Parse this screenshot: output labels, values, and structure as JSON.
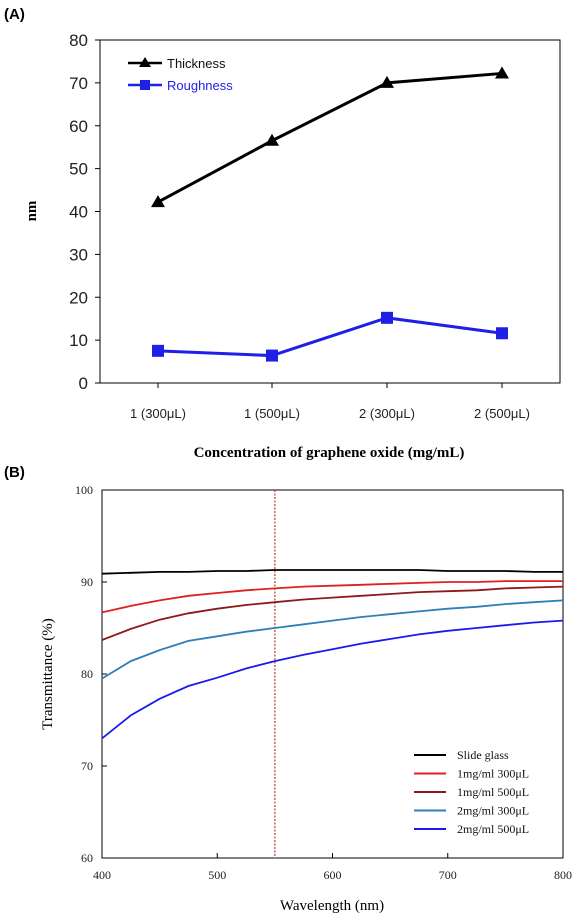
{
  "chart_data": [
    {
      "panel_label": "(A)",
      "type": "line",
      "categories": [
        "1 (300μL)",
        "1 (500μL)",
        "2 (300μL)",
        "2 (500μL)"
      ],
      "series": [
        {
          "name": "Thickness",
          "values": [
            42.2,
            56.5,
            70.0,
            72.2
          ],
          "color": "#000000",
          "marker": "triangle"
        },
        {
          "name": "Roughness",
          "values": [
            7.5,
            6.4,
            15.2,
            11.6
          ],
          "color": "#1f1fe6",
          "marker": "square"
        }
      ],
      "xlabel": "Concentration of graphene oxide (mg/mL)",
      "ylabel": "nm",
      "ylim": [
        0,
        80
      ],
      "yticks": [
        "0",
        "10",
        "20",
        "30",
        "40",
        "50",
        "60",
        "70",
        "80"
      ],
      "grid": false,
      "legend": "top-left"
    },
    {
      "panel_label": "(B)",
      "type": "line",
      "xlabel": "Wavelength (nm)",
      "ylabel": "Transmittance (%)",
      "xlim": [
        400,
        800
      ],
      "ylim": [
        60,
        100
      ],
      "xticks": [
        "400",
        "500",
        "600",
        "700",
        "800"
      ],
      "yticks": [
        "60",
        "70",
        "80",
        "90",
        "100"
      ],
      "grid": false,
      "legend": "bottom-right",
      "vline": {
        "x": 550,
        "color": "#c0392b",
        "style": "dashed"
      },
      "x": [
        400,
        425,
        450,
        475,
        500,
        525,
        550,
        575,
        600,
        625,
        650,
        675,
        700,
        725,
        750,
        775,
        800
      ],
      "series": [
        {
          "name": "Slide glass",
          "color": "#000000",
          "values": [
            90.9,
            91.0,
            91.1,
            91.1,
            91.2,
            91.2,
            91.3,
            91.3,
            91.3,
            91.3,
            91.3,
            91.3,
            91.2,
            91.2,
            91.2,
            91.1,
            91.1
          ]
        },
        {
          "name": "1mg/ml 300μL",
          "color": "#e02020",
          "values": [
            86.7,
            87.4,
            88.0,
            88.5,
            88.8,
            89.1,
            89.3,
            89.5,
            89.6,
            89.7,
            89.8,
            89.9,
            90.0,
            90.0,
            90.1,
            90.1,
            90.1
          ]
        },
        {
          "name": "1mg/ml 500μL",
          "color": "#8b1a1a",
          "values": [
            83.7,
            84.9,
            85.9,
            86.6,
            87.1,
            87.5,
            87.8,
            88.1,
            88.3,
            88.5,
            88.7,
            88.9,
            89.0,
            89.1,
            89.3,
            89.4,
            89.5
          ]
        },
        {
          "name": "2mg/ml 300μL",
          "color": "#2e7fb8",
          "values": [
            79.5,
            81.4,
            82.6,
            83.6,
            84.1,
            84.6,
            85.0,
            85.4,
            85.8,
            86.2,
            86.5,
            86.8,
            87.1,
            87.3,
            87.6,
            87.8,
            88.0
          ]
        },
        {
          "name": "2mg/ml 500μL",
          "color": "#1a1aee",
          "values": [
            73.0,
            75.5,
            77.3,
            78.7,
            79.6,
            80.6,
            81.4,
            82.1,
            82.7,
            83.3,
            83.8,
            84.3,
            84.7,
            85.0,
            85.3,
            85.6,
            85.8
          ]
        }
      ]
    }
  ]
}
